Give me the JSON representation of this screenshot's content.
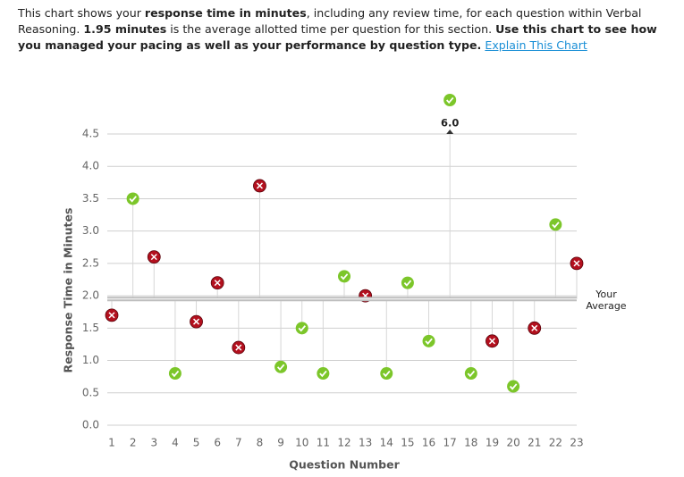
{
  "intro": [
    {
      "text": "This chart shows your ",
      "bold": false
    },
    {
      "text": "response time in minutes",
      "bold": true
    },
    {
      "text": ", including any review time, for each question within Verbal Reasoning. ",
      "bold": false
    },
    {
      "text": "1.95 minutes",
      "bold": true
    },
    {
      "text": " is the average allotted time per question for this section. ",
      "bold": false
    },
    {
      "text": "Use this chart to see how you managed your pacing as well as your performance by question type.",
      "bold": true
    }
  ],
  "link": "Explain This Chart",
  "chart_data": {
    "type": "stem-scatter",
    "y_label": "Response Time in Minutes",
    "x_label": "Question Number",
    "categories": [
      "1",
      "2",
      "3",
      "4",
      "5",
      "6",
      "7",
      "8",
      "9",
      "10",
      "11",
      "12",
      "13",
      "14",
      "15",
      "16",
      "17",
      "18",
      "19",
      "20",
      "21",
      "22",
      "23"
    ],
    "values": [
      1.7,
      3.5,
      2.6,
      0.8,
      1.6,
      2.2,
      1.2,
      3.7,
      0.9,
      1.5,
      0.8,
      2.3,
      2.0,
      0.8,
      2.2,
      1.3,
      6.0,
      0.8,
      1.3,
      0.6,
      1.5,
      3.1,
      2.5
    ],
    "value_labels": [
      null,
      null,
      null,
      null,
      null,
      null,
      null,
      null,
      null,
      null,
      null,
      null,
      null,
      null,
      null,
      null,
      "6.0",
      null,
      null,
      null,
      null,
      null,
      null
    ],
    "correct": [
      false,
      true,
      false,
      true,
      false,
      false,
      false,
      false,
      true,
      true,
      true,
      true,
      false,
      true,
      true,
      true,
      true,
      true,
      false,
      true,
      false,
      true,
      false
    ],
    "correct_color": "#7cc62a",
    "wrong_color": "#b3101e",
    "average": 1.95,
    "average_label": "Your Average",
    "ylim": [
      0,
      4.5
    ],
    "yticks": [
      {
        "value": 0,
        "label": "0.0"
      },
      0.5,
      {
        "value": 1,
        "label": "1.0"
      },
      1.5,
      {
        "value": 2,
        "label": "2.0"
      },
      2.5,
      {
        "value": 3,
        "label": "3.0"
      },
      3.5,
      {
        "value": 4,
        "label": "4.0"
      },
      4.5
    ],
    "grid": true
  }
}
